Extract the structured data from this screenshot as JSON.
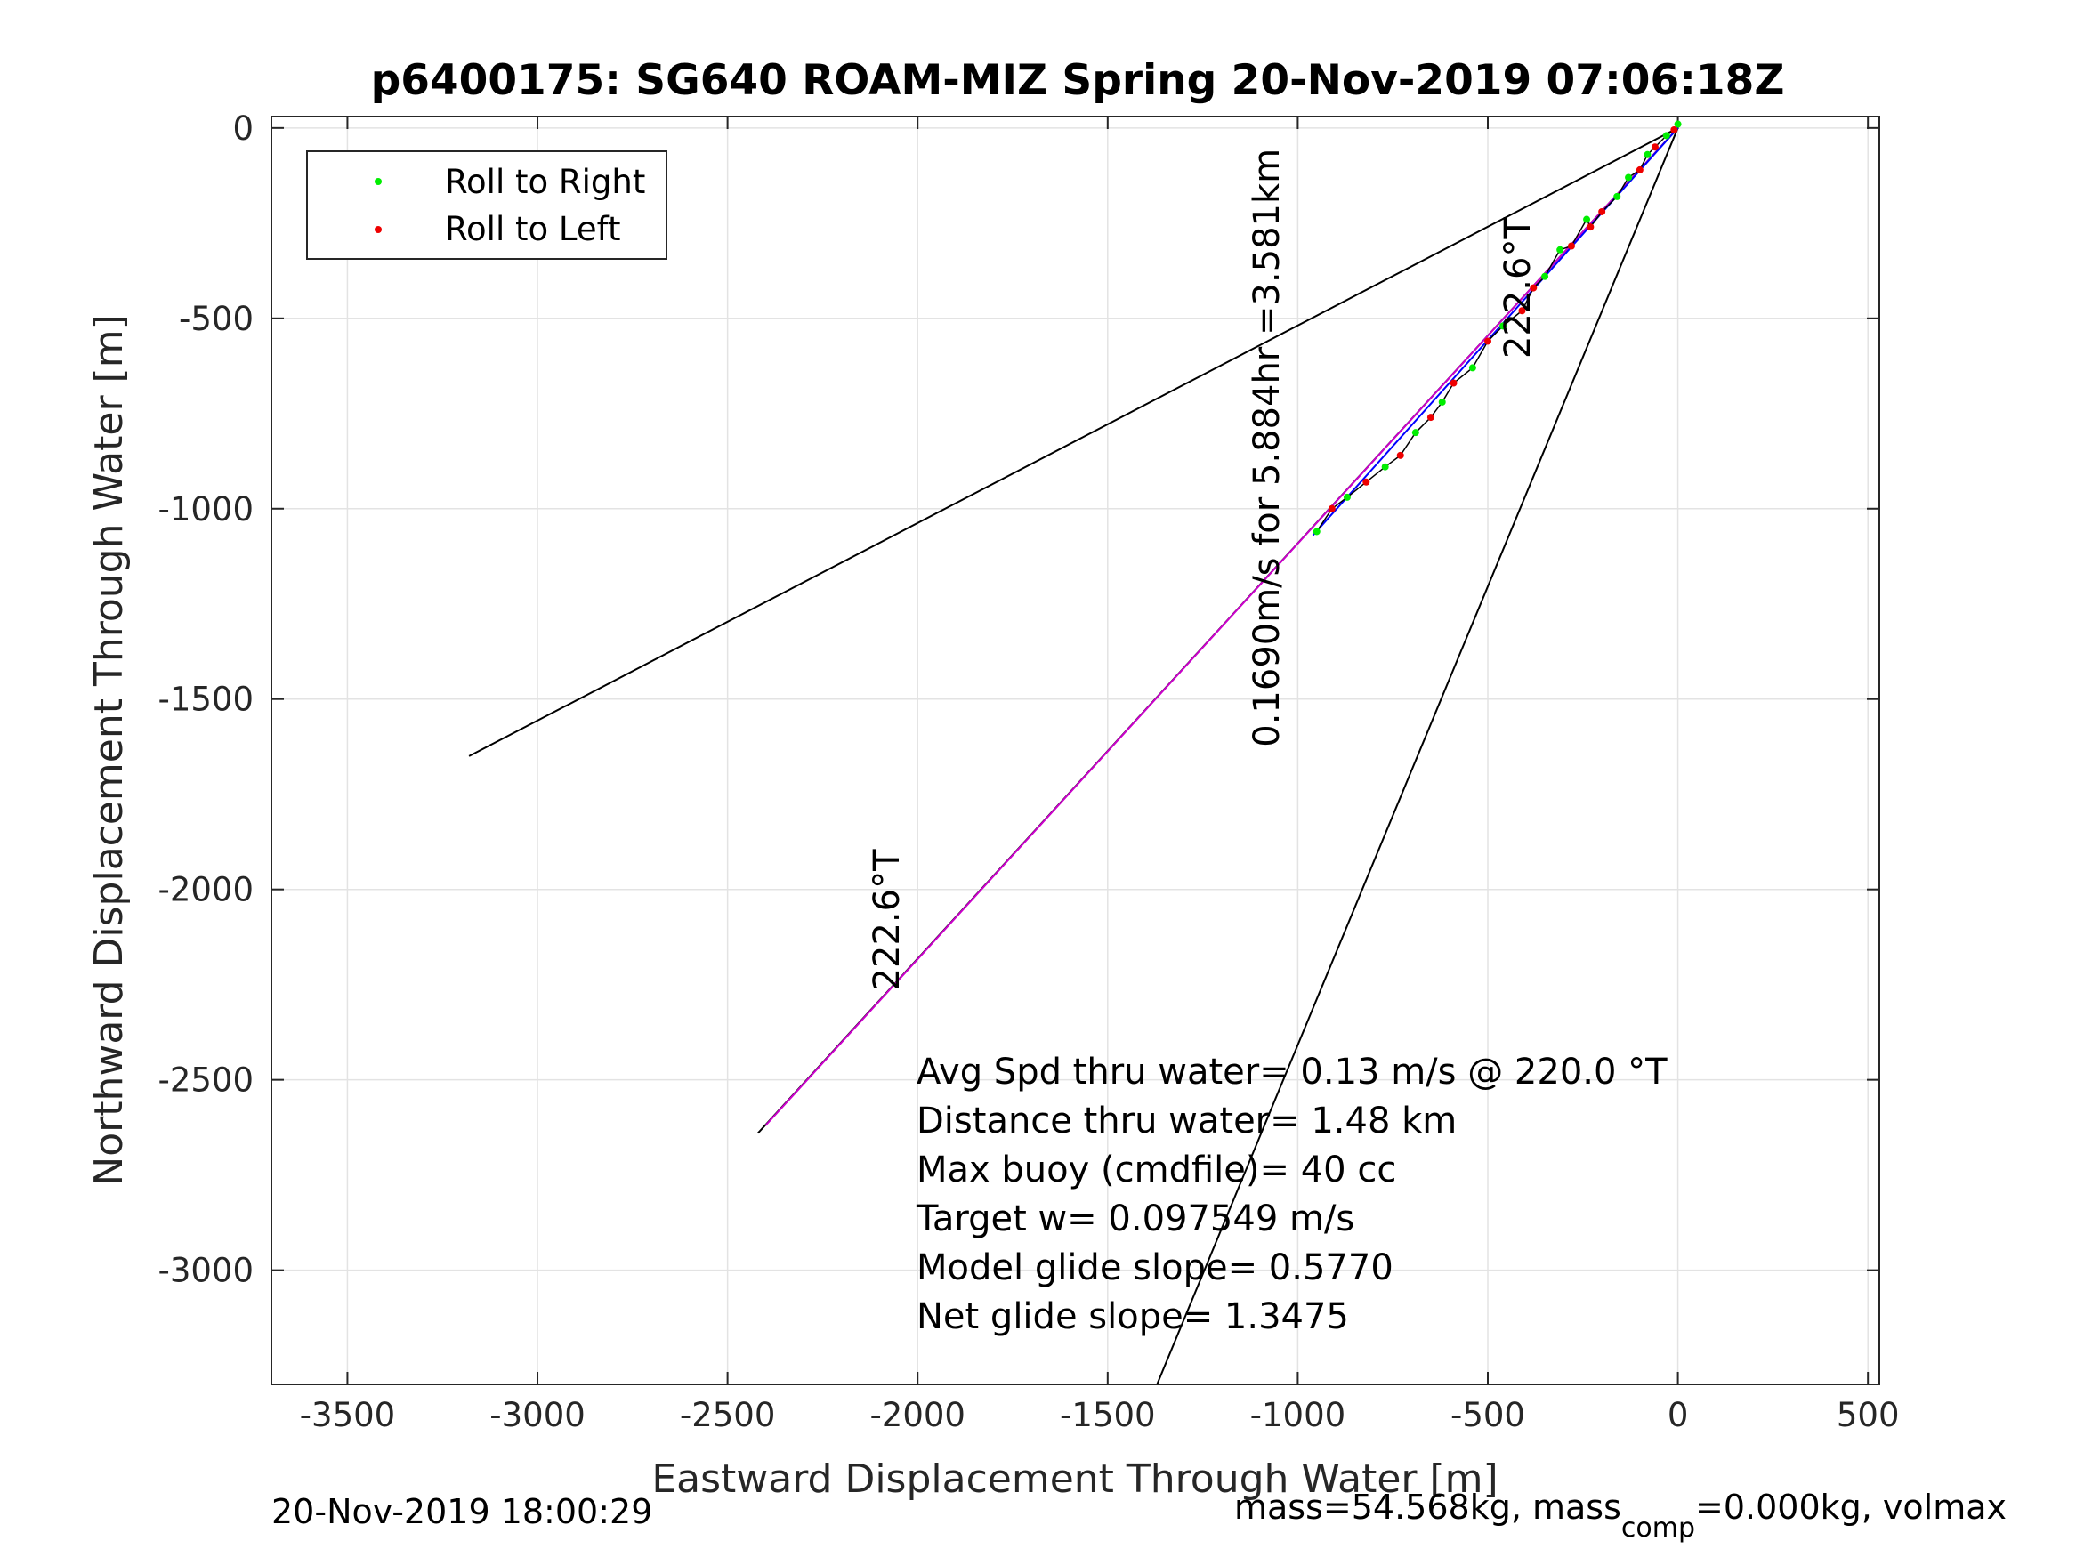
{
  "chart_data": {
    "type": "line",
    "title": "p6400175: SG640 ROAM-MIZ Spring 20-Nov-2019 07:06:18Z",
    "xlabel": "Eastward Displacement Through Water [m]",
    "ylabel": "Northward Displacement Through Water [m]",
    "xlim": [
      -3700,
      530
    ],
    "ylim": [
      -3300,
      30
    ],
    "xticks": [
      -3500,
      -3000,
      -2500,
      -2000,
      -1500,
      -1000,
      -500,
      0,
      500
    ],
    "yticks": [
      0,
      -500,
      -1000,
      -1500,
      -2000,
      -2500,
      -3000
    ],
    "grid": true,
    "legend": {
      "placement": "top-left",
      "entries": [
        {
          "label": "Roll to Right",
          "color": "#00ee00"
        },
        {
          "label": "Roll to Left",
          "color": "#ee0000"
        }
      ]
    },
    "series": [
      {
        "color": "#000000",
        "x": [
          0,
          -3180
        ],
        "y": [
          0,
          -1650
        ]
      },
      {
        "color": "#000000",
        "x": [
          0,
          -1370
        ],
        "y": [
          0,
          -3300
        ]
      },
      {
        "color": "#000000",
        "x": [
          0,
          -2420
        ],
        "y": [
          0,
          -2640
        ]
      },
      {
        "color": "#cc00cc",
        "x": [
          0,
          -2400
        ],
        "y": [
          0,
          -2620
        ]
      },
      {
        "color": "#0000ff",
        "x": [
          0,
          -960
        ],
        "y": [
          0,
          -1070
        ]
      }
    ],
    "track_points": [
      {
        "x": 0,
        "y": 10,
        "roll": "right"
      },
      {
        "x": -10,
        "y": -5,
        "roll": "left"
      },
      {
        "x": -30,
        "y": -20,
        "roll": "right"
      },
      {
        "x": -60,
        "y": -50,
        "roll": "left"
      },
      {
        "x": -80,
        "y": -70,
        "roll": "right"
      },
      {
        "x": -100,
        "y": -110,
        "roll": "left"
      },
      {
        "x": -130,
        "y": -130,
        "roll": "right"
      },
      {
        "x": -160,
        "y": -180,
        "roll": "right"
      },
      {
        "x": -200,
        "y": -220,
        "roll": "left"
      },
      {
        "x": -230,
        "y": -260,
        "roll": "left"
      },
      {
        "x": -240,
        "y": -240,
        "roll": "right"
      },
      {
        "x": -280,
        "y": -310,
        "roll": "left"
      },
      {
        "x": -310,
        "y": -320,
        "roll": "right"
      },
      {
        "x": -350,
        "y": -390,
        "roll": "right"
      },
      {
        "x": -380,
        "y": -420,
        "roll": "left"
      },
      {
        "x": -410,
        "y": -480,
        "roll": "left"
      },
      {
        "x": -460,
        "y": -520,
        "roll": "right"
      },
      {
        "x": -500,
        "y": -560,
        "roll": "left"
      },
      {
        "x": -540,
        "y": -630,
        "roll": "right"
      },
      {
        "x": -590,
        "y": -670,
        "roll": "left"
      },
      {
        "x": -620,
        "y": -720,
        "roll": "right"
      },
      {
        "x": -650,
        "y": -760,
        "roll": "left"
      },
      {
        "x": -690,
        "y": -800,
        "roll": "right"
      },
      {
        "x": -730,
        "y": -860,
        "roll": "left"
      },
      {
        "x": -770,
        "y": -890,
        "roll": "right"
      },
      {
        "x": -820,
        "y": -930,
        "roll": "left"
      },
      {
        "x": -870,
        "y": -970,
        "roll": "right"
      },
      {
        "x": -910,
        "y": -1000,
        "roll": "left"
      },
      {
        "x": -950,
        "y": -1060,
        "roll": "right"
      }
    ],
    "line_labels": [
      {
        "text": "222.6°T",
        "x": -2050,
        "y": -2080,
        "angle_deg": 222.6
      },
      {
        "text": "222.6°T",
        "x": -390,
        "y": -420,
        "angle_deg": 222.6
      },
      {
        "text": "0.1690m/s for 5.884hr =3.581km",
        "x": -1050,
        "y": -840,
        "angle_deg": 222.6
      }
    ],
    "annotations": [
      "Avg Spd thru water=  0.13 m/s @ 220.0 °T",
      "Distance thru water=  1.48 km",
      "Max buoy (cmdfile)= 40 cc",
      "Target w= 0.097549 m/s",
      "Model glide slope= 0.5770",
      "Net glide slope= 1.3475"
    ]
  },
  "footer": {
    "left": "20-Nov-2019 18:00:29",
    "right_prefix": "mass=54.568kg, mass",
    "right_sub": "comp",
    "right_suffix": "=0.000kg, volmax"
  }
}
